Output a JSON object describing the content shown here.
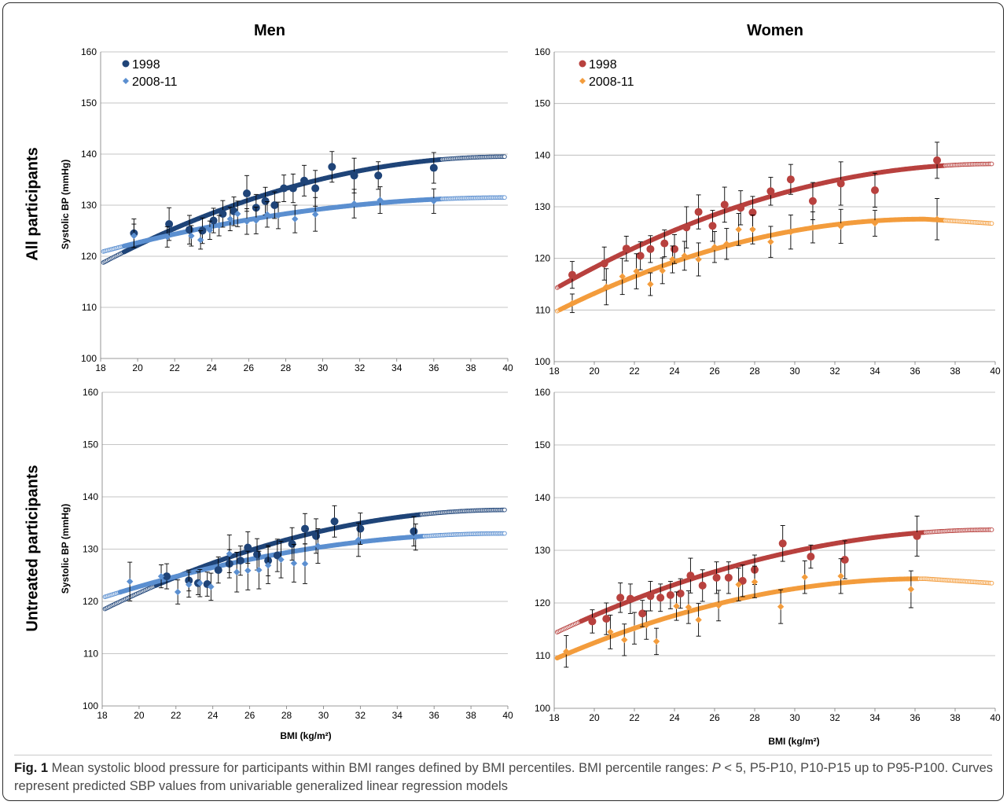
{
  "figure": {
    "col_titles": [
      "Men",
      "Women"
    ],
    "row_titles": [
      "All participants",
      "Untreated participants"
    ],
    "ylabel": "Systolic BP (mmHg)",
    "xlabel": "BMI (kg/m²)",
    "caption": {
      "label": "Fig. 1",
      "text_a": " Mean systolic blood pressure for participants within BMI ranges defined by BMI percentiles. BMI percentile ranges: ",
      "italic_p": "P",
      "text_b": " < 5, P5-P10, P10-P15 up to P95-P100. Curves represent predicted SBP values from univariable generalized linear regression models"
    },
    "colors": {
      "men_1998": "#1f4478",
      "men_2008": "#5b8fd0",
      "women_1998": "#b8413e",
      "women_2008": "#f39c3c",
      "grid": "#b3b3b3",
      "axis": "#7a7a7a"
    }
  },
  "chart_data": [
    {
      "type": "scatter",
      "panel": "Men — All participants",
      "xlim": [
        18,
        40
      ],
      "ylim": [
        100,
        160
      ],
      "xticks": [
        18,
        20,
        22,
        24,
        26,
        28,
        30,
        32,
        34,
        36,
        38,
        40
      ],
      "yticks": [
        100,
        110,
        120,
        130,
        140,
        150,
        160
      ],
      "grid": "horizontal",
      "legend": "top-left",
      "series": [
        {
          "name": "1998",
          "marker": "circle",
          "color": "#1f4478",
          "points": [
            [
              19.8,
              124.5
            ],
            [
              21.7,
              126.3
            ],
            [
              22.8,
              125.2
            ],
            [
              23.5,
              125.0
            ],
            [
              24.1,
              127.0
            ],
            [
              24.6,
              128.3
            ],
            [
              25.2,
              128.8
            ],
            [
              25.9,
              132.3
            ],
            [
              26.4,
              129.5
            ],
            [
              26.9,
              130.8
            ],
            [
              27.4,
              130.0
            ],
            [
              27.9,
              133.3
            ],
            [
              28.4,
              133.3
            ],
            [
              29.0,
              134.8
            ],
            [
              29.6,
              133.3
            ],
            [
              30.5,
              137.5
            ],
            [
              31.7,
              135.8
            ],
            [
              33.0,
              135.8
            ],
            [
              36.0,
              137.3
            ]
          ],
          "errors": [
            2.8,
            3.2,
            2.8,
            2.5,
            2.4,
            2.6,
            2.8,
            3.5,
            2.6,
            2.7,
            2.6,
            2.6,
            2.8,
            3.0,
            3.5,
            3.0,
            3.4,
            2.7,
            3.0
          ],
          "fit": {
            "a": 118.5,
            "b": 139.5,
            "peak": 40
          }
        },
        {
          "name": "2008-11",
          "marker": "diamond",
          "color": "#5b8fd0",
          "points": [
            [
              19.8,
              124.0
            ],
            [
              21.6,
              123.8
            ],
            [
              22.9,
              124.0
            ],
            [
              23.4,
              123.2
            ],
            [
              23.9,
              125.1
            ],
            [
              24.4,
              126.0
            ],
            [
              25.0,
              127.3
            ],
            [
              25.4,
              128.3
            ],
            [
              25.9,
              126.8
            ],
            [
              26.4,
              127.0
            ],
            [
              27.0,
              128.2
            ],
            [
              27.6,
              128.0
            ],
            [
              28.5,
              127.3
            ],
            [
              29.6,
              128.2
            ],
            [
              31.7,
              130.3
            ],
            [
              33.1,
              131.0
            ],
            [
              36.0,
              130.8
            ]
          ],
          "errors": [
            2.3,
            2.0,
            2.0,
            1.8,
            1.8,
            2.0,
            2.3,
            2.5,
            2.5,
            2.6,
            2.5,
            2.6,
            2.7,
            3.3,
            2.8,
            2.6,
            2.4
          ],
          "fit": {
            "a": 120.8,
            "b": 131.5,
            "peak": 40
          }
        }
      ]
    },
    {
      "type": "scatter",
      "panel": "Women — All participants",
      "xlim": [
        18,
        40
      ],
      "ylim": [
        100,
        160
      ],
      "xticks": [
        18,
        20,
        22,
        24,
        26,
        28,
        30,
        32,
        34,
        36,
        38,
        40
      ],
      "yticks": [
        100,
        110,
        120,
        130,
        140,
        150,
        160
      ],
      "grid": "horizontal",
      "legend": "top-left",
      "series": [
        {
          "name": "1998",
          "marker": "circle",
          "color": "#b8413e",
          "points": [
            [
              18.9,
              116.8
            ],
            [
              20.5,
              119.0
            ],
            [
              21.6,
              121.9
            ],
            [
              22.3,
              120.5
            ],
            [
              22.8,
              121.8
            ],
            [
              23.5,
              122.9
            ],
            [
              24.0,
              121.8
            ],
            [
              24.6,
              126.0
            ],
            [
              25.2,
              129.0
            ],
            [
              25.9,
              126.3
            ],
            [
              26.5,
              130.4
            ],
            [
              27.3,
              129.8
            ],
            [
              27.9,
              128.9
            ],
            [
              28.8,
              133.0
            ],
            [
              29.8,
              135.3
            ],
            [
              30.9,
              131.1
            ],
            [
              32.3,
              134.5
            ],
            [
              34.0,
              133.2
            ],
            [
              37.1,
              139.0
            ]
          ],
          "errors": [
            2.6,
            3.2,
            2.4,
            2.7,
            2.6,
            2.6,
            2.8,
            4.0,
            3.3,
            3.0,
            3.4,
            3.3,
            3.1,
            2.7,
            2.9,
            3.6,
            4.2,
            3.3,
            3.5
          ],
          "fit": {
            "a": 114.0,
            "b": 138.3,
            "peak": 40
          }
        },
        {
          "name": "2008-11",
          "marker": "diamond",
          "color": "#f39c3c",
          "points": [
            [
              18.9,
              111.3
            ],
            [
              20.6,
              114.5
            ],
            [
              21.4,
              116.5
            ],
            [
              22.1,
              117.5
            ],
            [
              22.8,
              115.0
            ],
            [
              23.4,
              117.6
            ],
            [
              23.9,
              119.8
            ],
            [
              24.5,
              120.5
            ],
            [
              25.2,
              119.8
            ],
            [
              26.0,
              122.2
            ],
            [
              26.6,
              122.8
            ],
            [
              27.2,
              125.6
            ],
            [
              27.9,
              125.6
            ],
            [
              28.8,
              123.2
            ],
            [
              29.8,
              125.1
            ],
            [
              30.9,
              126.0
            ],
            [
              32.3,
              126.2
            ],
            [
              34.0,
              126.8
            ],
            [
              37.1,
              127.6
            ]
          ],
          "errors": [
            1.8,
            3.5,
            3.5,
            3.4,
            2.2,
            2.5,
            2.6,
            2.8,
            3.2,
            3.0,
            3.0,
            3.1,
            2.8,
            3.0,
            3.3,
            3.0,
            3.3,
            2.5,
            4.0
          ],
          "fit": {
            "a": 109.5,
            "b": 127.6,
            "peak": 36.5
          }
        }
      ]
    },
    {
      "type": "scatter",
      "panel": "Men — Untreated participants",
      "xlim": [
        18,
        40
      ],
      "ylim": [
        100,
        160
      ],
      "xticks": [
        18,
        20,
        22,
        24,
        26,
        28,
        30,
        32,
        34,
        36,
        38,
        40
      ],
      "yticks": [
        100,
        110,
        120,
        130,
        140,
        150,
        160
      ],
      "grid": "horizontal",
      "series": [
        {
          "name": "1998",
          "marker": "circle",
          "color": "#1f4478",
          "points": [
            [
              21.5,
              124.8
            ],
            [
              22.7,
              124.0
            ],
            [
              23.2,
              123.5
            ],
            [
              23.7,
              123.3
            ],
            [
              24.3,
              126.0
            ],
            [
              24.9,
              127.2
            ],
            [
              25.5,
              127.8
            ],
            [
              25.9,
              130.3
            ],
            [
              26.4,
              129.0
            ],
            [
              27.0,
              127.8
            ],
            [
              27.5,
              128.8
            ],
            [
              28.3,
              131.0
            ],
            [
              29.0,
              133.9
            ],
            [
              29.6,
              132.5
            ],
            [
              30.6,
              135.3
            ],
            [
              32.0,
              133.9
            ],
            [
              34.9,
              133.4
            ]
          ],
          "errors": [
            2.4,
            2.0,
            2.2,
            2.3,
            2.5,
            2.7,
            2.8,
            3.0,
            3.0,
            2.9,
            3.1,
            3.1,
            2.9,
            3.3,
            3.0,
            3.0,
            2.8
          ],
          "fit": {
            "a": 118.3,
            "b": 137.5,
            "peak": 40
          }
        },
        {
          "name": "2008-11",
          "marker": "diamond",
          "color": "#5b8fd0",
          "points": [
            [
              19.5,
              123.8
            ],
            [
              21.2,
              124.8
            ],
            [
              22.1,
              121.8
            ],
            [
              22.7,
              123.2
            ],
            [
              23.3,
              123.5
            ],
            [
              23.9,
              122.8
            ],
            [
              24.9,
              129.1
            ],
            [
              25.3,
              125.6
            ],
            [
              25.9,
              125.9
            ],
            [
              26.5,
              126.0
            ],
            [
              27.0,
              126.9
            ],
            [
              27.7,
              128.0
            ],
            [
              28.4,
              127.3
            ],
            [
              29.0,
              127.2
            ],
            [
              29.7,
              130.6
            ],
            [
              31.9,
              131.8
            ],
            [
              35.0,
              132.3
            ]
          ],
          "errors": [
            3.7,
            2.2,
            2.3,
            2.4,
            2.6,
            2.6,
            3.6,
            3.8,
            3.7,
            3.6,
            3.5,
            3.5,
            3.6,
            3.8,
            3.3,
            3.2,
            2.5
          ],
          "fit": {
            "a": 120.7,
            "b": 133.0,
            "peak": 40
          }
        }
      ]
    },
    {
      "type": "scatter",
      "panel": "Women — Untreated participants",
      "xlim": [
        18,
        40
      ],
      "ylim": [
        100,
        160
      ],
      "xticks": [
        18,
        20,
        22,
        24,
        26,
        28,
        30,
        32,
        34,
        36,
        38,
        40
      ],
      "yticks": [
        100,
        110,
        120,
        130,
        140,
        150,
        160
      ],
      "grid": "horizontal",
      "series": [
        {
          "name": "1998",
          "marker": "circle",
          "color": "#b8413e",
          "points": [
            [
              19.9,
              116.5
            ],
            [
              20.6,
              117.0
            ],
            [
              21.3,
              121.0
            ],
            [
              21.8,
              120.8
            ],
            [
              22.4,
              118.0
            ],
            [
              22.8,
              121.3
            ],
            [
              23.3,
              121.0
            ],
            [
              23.8,
              121.5
            ],
            [
              24.3,
              121.8
            ],
            [
              24.8,
              125.2
            ],
            [
              25.4,
              123.3
            ],
            [
              26.1,
              124.8
            ],
            [
              26.7,
              124.8
            ],
            [
              27.4,
              124.2
            ],
            [
              28.0,
              126.3
            ],
            [
              29.4,
              131.3
            ],
            [
              30.8,
              128.8
            ],
            [
              32.5,
              128.2
            ],
            [
              36.1,
              132.7
            ]
          ],
          "errors": [
            2.2,
            3.0,
            2.8,
            2.8,
            2.5,
            2.8,
            2.6,
            2.6,
            2.8,
            3.3,
            3.0,
            3.0,
            3.0,
            3.0,
            2.8,
            3.4,
            2.2,
            3.6,
            3.8
          ],
          "fit": {
            "a": 114.2,
            "b": 133.9,
            "peak": 40
          }
        },
        {
          "name": "2008-11",
          "marker": "diamond",
          "color": "#f39c3c",
          "points": [
            [
              18.6,
              110.8
            ],
            [
              20.8,
              114.5
            ],
            [
              21.5,
              113.0
            ],
            [
              22.0,
              115.2
            ],
            [
              22.6,
              115.8
            ],
            [
              23.1,
              112.7
            ],
            [
              24.1,
              119.4
            ],
            [
              24.7,
              119.2
            ],
            [
              25.2,
              116.8
            ],
            [
              26.2,
              119.5
            ],
            [
              27.2,
              123.5
            ],
            [
              28.0,
              124.0
            ],
            [
              29.3,
              119.3
            ],
            [
              30.5,
              124.9
            ],
            [
              32.3,
              125.1
            ],
            [
              35.8,
              122.6
            ]
          ],
          "errors": [
            3.0,
            3.2,
            3.0,
            3.0,
            2.7,
            2.5,
            2.7,
            3.1,
            3.1,
            2.9,
            3.1,
            3.0,
            3.2,
            3.1,
            3.3,
            3.5
          ],
          "fit": {
            "a": 109.3,
            "b": 124.6,
            "peak": 36.5
          }
        }
      ]
    }
  ]
}
